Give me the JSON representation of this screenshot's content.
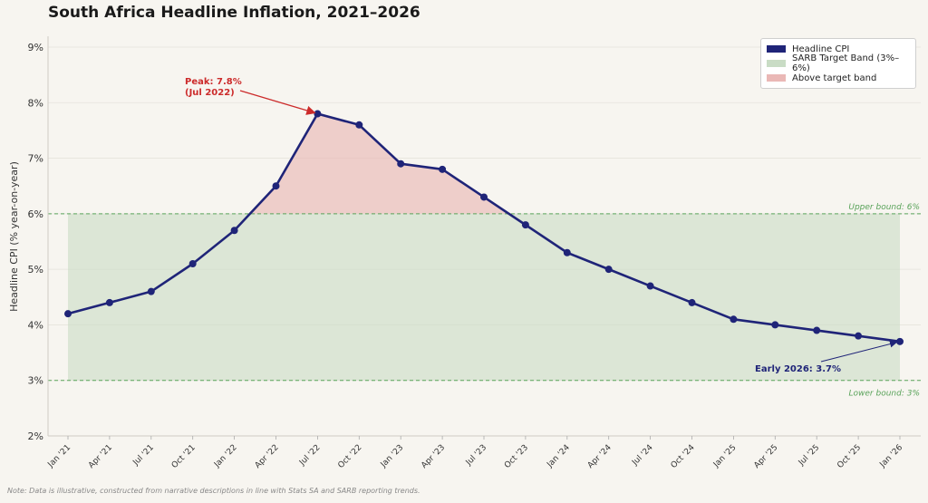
{
  "title": "South Africa Headline Inflation, 2021–2026",
  "note": "Note: Data is illustrative, constructed from narrative descriptions in line with Stats SA and SARB reporting trends.",
  "colors": {
    "line": "#1f2478",
    "band": "#c9dcc5",
    "above": "#eab8b6",
    "bound": "#5aa35a",
    "peak": "#cc2b2b"
  },
  "legend": {
    "cpi": "Headline CPI",
    "band": "SARB Target Band (3%–6%)",
    "above": "Above target band"
  },
  "chart_data": {
    "type": "line",
    "ylabel": "Headline CPI (% year-on-year)",
    "xlabel": "",
    "ylim": [
      2,
      9
    ],
    "yticks": [
      "2%",
      "3%",
      "4%",
      "5%",
      "6%",
      "7%",
      "8%",
      "9%"
    ],
    "grid": true,
    "legend_position": "top-right",
    "categories": [
      "Jan '21",
      "Apr '21",
      "Jul '21",
      "Oct '21",
      "Jan '22",
      "Apr '22",
      "Jul '22",
      "Oct '22",
      "Jan '23",
      "Apr '23",
      "Jul '23",
      "Oct '23",
      "Jan '24",
      "Apr '24",
      "Jul '24",
      "Oct '24",
      "Jan '25",
      "Apr '25",
      "Jul '25",
      "Oct '25",
      "Jan '26"
    ],
    "series": [
      {
        "name": "Headline CPI",
        "values": [
          4.2,
          4.4,
          4.6,
          5.1,
          5.7,
          6.5,
          7.8,
          7.6,
          6.9,
          6.8,
          6.3,
          5.8,
          5.3,
          5.0,
          4.7,
          4.4,
          4.1,
          4.0,
          3.9,
          3.8,
          3.7
        ]
      }
    ],
    "target_band": [
      3,
      6
    ],
    "upper_label": "Upper bound: 6%",
    "lower_label": "Lower bound: 3%",
    "annotations": {
      "peak_line1": "Peak: 7.8%",
      "peak_line2": "(Jul 2022)",
      "peak_index": 6,
      "latest": "Early 2026: 3.7%",
      "latest_index": 20
    }
  }
}
